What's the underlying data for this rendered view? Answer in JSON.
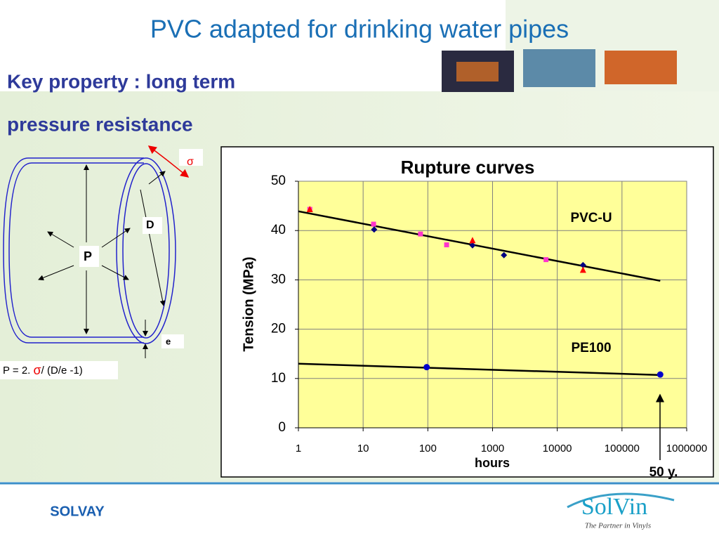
{
  "header": {
    "title": "PVC adapted for drinking water pipes",
    "subtitle": [
      "Key property : long term",
      "pressure resistance"
    ]
  },
  "diagram": {
    "sigma": "σ",
    "diameter": "D",
    "pressure": "P",
    "thickness": "e",
    "formula": [
      "P = 2. ",
      "σ",
      "/ (D/e -1)"
    ]
  },
  "chart_data": {
    "type": "scatter",
    "title": "Rupture curves",
    "x_label": "hours",
    "y_label": "Tension (MPa)",
    "xlog": true,
    "xlim": [
      1,
      1000000
    ],
    "xticks": [
      1,
      10,
      100,
      1000,
      10000,
      100000,
      1000000
    ],
    "ylim": [
      0,
      50
    ],
    "yticks": [
      0,
      10,
      20,
      30,
      40,
      50
    ],
    "grid": true,
    "series": [
      {
        "marker": "none",
        "color": "#000000",
        "x": [
          1,
          390000
        ],
        "values": [
          43.9,
          29.8
        ]
      },
      {
        "marker": "none",
        "color": "#000000",
        "x": [
          1,
          390000
        ],
        "values": [
          13.0,
          10.7
        ]
      },
      {
        "marker": "square",
        "color": "#ff33cc",
        "x": [
          1.5,
          14.5,
          77,
          195,
          6700
        ],
        "values": [
          44.3,
          41.3,
          39.3,
          37.1,
          34.1
        ]
      },
      {
        "marker": "diamond",
        "color": "#000080",
        "x": [
          14.8,
          490,
          1500,
          25000
        ],
        "values": [
          40.2,
          37.0,
          35.0,
          33.0
        ]
      },
      {
        "marker": "triangle",
        "color": "#ff0000",
        "x": [
          1.5,
          490,
          25000
        ],
        "values": [
          44.3,
          38.0,
          32.0
        ]
      },
      {
        "marker": "circle",
        "color": "#0000cc",
        "x": [
          96,
          390000
        ],
        "values": [
          12.3,
          10.8
        ]
      }
    ],
    "annotations": [
      "PVC-U",
      "PE100",
      "50 y."
    ]
  },
  "footer": {
    "company": "SOLVAY",
    "logo": "SolVin",
    "tagline": "The Partner in Vinyls"
  }
}
